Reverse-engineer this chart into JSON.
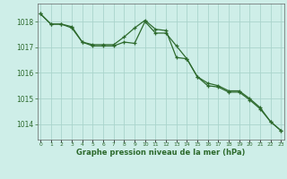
{
  "series1_x": [
    0,
    1,
    2,
    3,
    4,
    5,
    6,
    7,
    8,
    9,
    10,
    11,
    12,
    13,
    14,
    15,
    16,
    17,
    18,
    19,
    20,
    21,
    22,
    23
  ],
  "series1_y": [
    1018.3,
    1017.9,
    1017.9,
    1017.75,
    1017.2,
    1017.05,
    1017.05,
    1017.05,
    1017.2,
    1017.15,
    1018.0,
    1017.55,
    1017.55,
    1017.05,
    1016.55,
    1015.85,
    1015.6,
    1015.5,
    1015.3,
    1015.3,
    1015.0,
    1014.65,
    1014.1,
    1013.75
  ],
  "series2_x": [
    0,
    1,
    2,
    3,
    4,
    5,
    6,
    7,
    8,
    9,
    10,
    11,
    12,
    13,
    14,
    15,
    16,
    17,
    18,
    19,
    20,
    21,
    22,
    23
  ],
  "series2_y": [
    1018.3,
    1017.9,
    1017.9,
    1017.8,
    1017.2,
    1017.1,
    1017.1,
    1017.1,
    1017.4,
    1017.75,
    1018.05,
    1017.7,
    1017.65,
    1016.6,
    1016.55,
    1015.85,
    1015.5,
    1015.45,
    1015.25,
    1015.25,
    1014.95,
    1014.6,
    1014.1,
    1013.75
  ],
  "line_color": "#2d6a2d",
  "bg_color": "#ceeee8",
  "grid_color": "#aad4cc",
  "xlabel": "Graphe pression niveau de la mer (hPa)",
  "yticks": [
    1014,
    1015,
    1016,
    1017,
    1018
  ],
  "xtick_labels": [
    "0",
    "1",
    "2",
    "3",
    "4",
    "5",
    "6",
    "7",
    "8",
    "9",
    "10",
    "11",
    "12",
    "13",
    "14",
    "15",
    "16",
    "17",
    "18",
    "19",
    "20",
    "21",
    "22",
    "23"
  ],
  "ylim": [
    1013.4,
    1018.7
  ],
  "xlim": [
    -0.3,
    23.3
  ]
}
